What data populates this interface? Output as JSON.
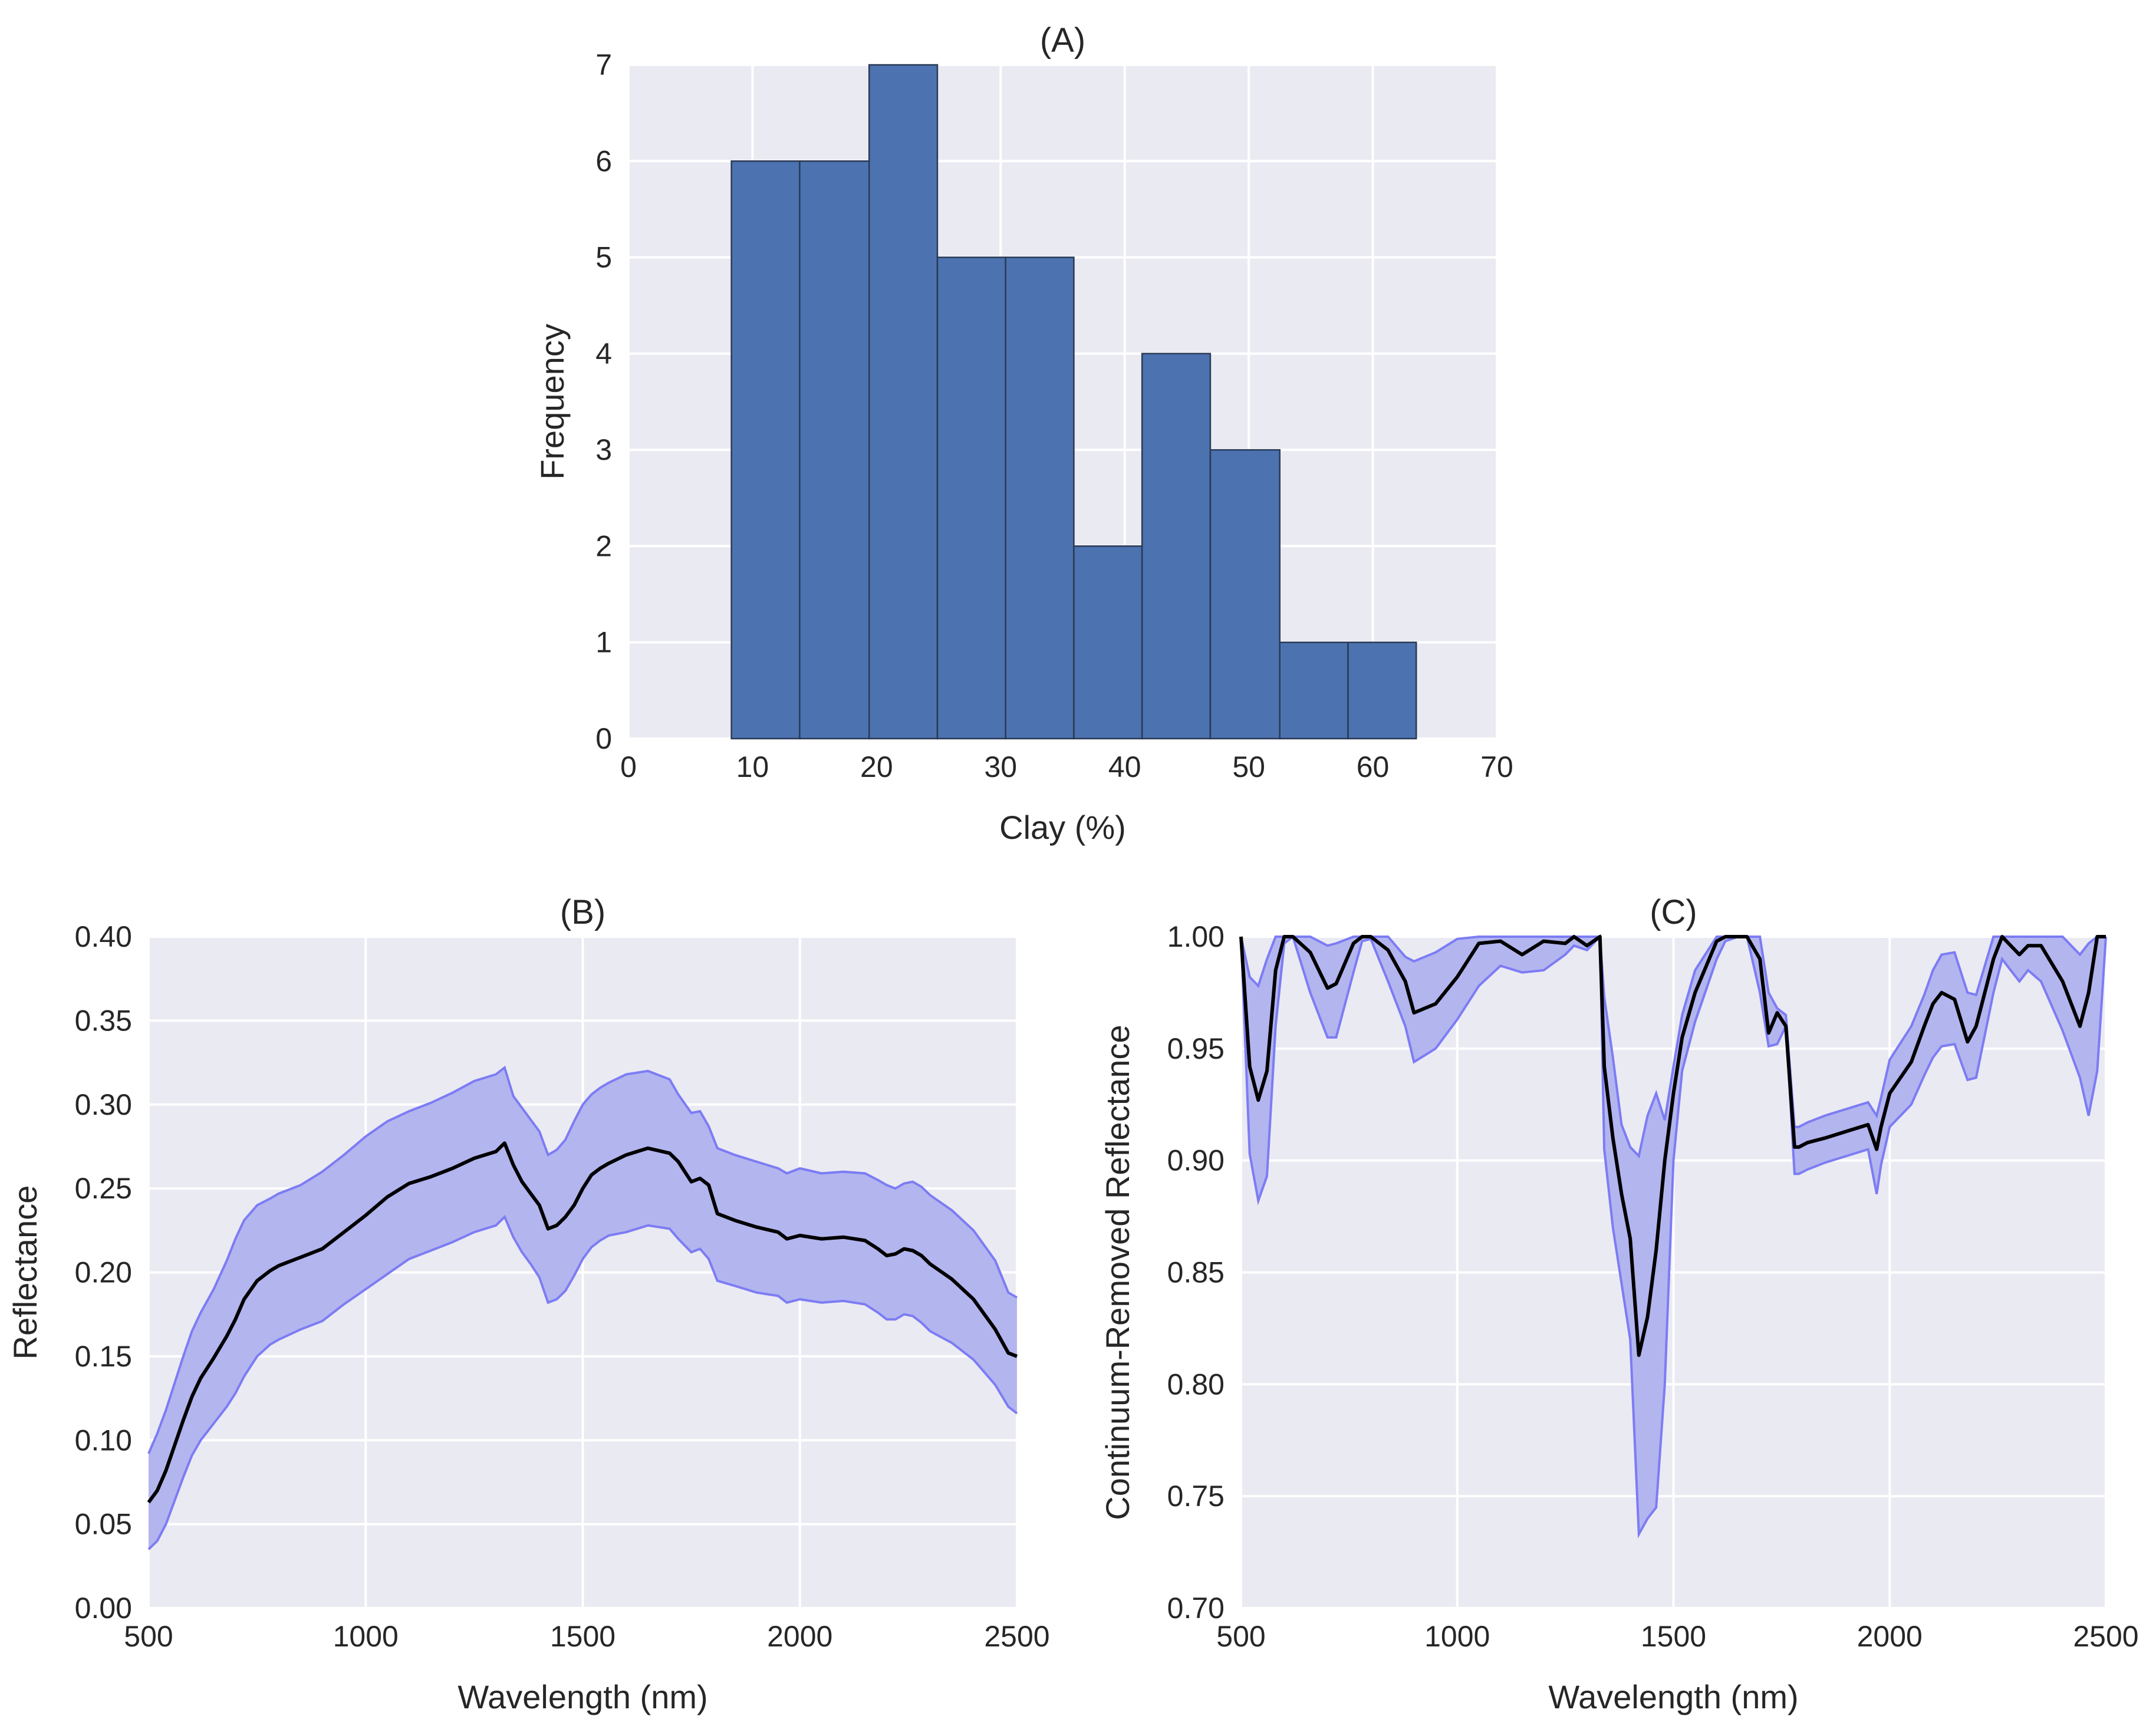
{
  "chart_data": [
    {
      "panel": "A",
      "type": "bar",
      "title": "(A)",
      "xlabel": "Clay (%)",
      "ylabel": "Frequency",
      "xlim": [
        0,
        70
      ],
      "ylim": [
        0,
        7
      ],
      "xticks": [
        0,
        10,
        20,
        30,
        40,
        50,
        60,
        70
      ],
      "yticks": [
        0,
        1,
        2,
        3,
        4,
        5,
        6,
        7
      ],
      "bin_edges": [
        8.3,
        13.8,
        19.4,
        24.9,
        30.4,
        35.9,
        41.4,
        46.9,
        52.5,
        58.0,
        63.5
      ],
      "values": [
        6,
        6,
        7,
        5,
        5,
        2,
        4,
        3,
        1,
        1
      ],
      "bar_color": "#4c72b0",
      "grid": true
    },
    {
      "panel": "B",
      "type": "line",
      "title": "(B)",
      "xlabel": "Wavelength (nm)",
      "ylabel": "Reflectance",
      "xlim": [
        500,
        2500
      ],
      "ylim": [
        0.0,
        0.4
      ],
      "xticks": [
        500,
        1000,
        1500,
        2000,
        2500
      ],
      "yticks": [
        "0.00",
        "0.05",
        "0.10",
        "0.15",
        "0.20",
        "0.25",
        "0.30",
        "0.35",
        "0.40"
      ],
      "x": [
        500,
        520,
        540,
        560,
        580,
        600,
        620,
        650,
        680,
        700,
        720,
        750,
        780,
        800,
        850,
        900,
        950,
        1000,
        1050,
        1100,
        1150,
        1200,
        1250,
        1300,
        1320,
        1340,
        1360,
        1380,
        1400,
        1420,
        1440,
        1460,
        1480,
        1500,
        1520,
        1540,
        1560,
        1600,
        1650,
        1700,
        1720,
        1750,
        1770,
        1790,
        1810,
        1850,
        1900,
        1950,
        1970,
        2000,
        2050,
        2100,
        2150,
        2180,
        2200,
        2220,
        2240,
        2260,
        2280,
        2300,
        2350,
        2400,
        2450,
        2480,
        2500
      ],
      "series": [
        {
          "name": "mean",
          "values": [
            0.063,
            0.07,
            0.082,
            0.097,
            0.112,
            0.126,
            0.137,
            0.149,
            0.162,
            0.172,
            0.184,
            0.195,
            0.201,
            0.204,
            0.209,
            0.214,
            0.224,
            0.234,
            0.245,
            0.253,
            0.257,
            0.262,
            0.268,
            0.272,
            0.277,
            0.264,
            0.254,
            0.247,
            0.24,
            0.226,
            0.228,
            0.233,
            0.24,
            0.25,
            0.258,
            0.262,
            0.265,
            0.27,
            0.274,
            0.271,
            0.266,
            0.254,
            0.256,
            0.252,
            0.235,
            0.231,
            0.227,
            0.224,
            0.22,
            0.222,
            0.22,
            0.221,
            0.219,
            0.214,
            0.21,
            0.211,
            0.214,
            0.213,
            0.21,
            0.205,
            0.196,
            0.184,
            0.166,
            0.152,
            0.15
          ]
        },
        {
          "name": "upper",
          "values": [
            0.092,
            0.104,
            0.118,
            0.134,
            0.15,
            0.165,
            0.176,
            0.19,
            0.207,
            0.22,
            0.231,
            0.24,
            0.244,
            0.247,
            0.252,
            0.26,
            0.27,
            0.281,
            0.29,
            0.296,
            0.301,
            0.307,
            0.314,
            0.318,
            0.322,
            0.305,
            0.298,
            0.291,
            0.284,
            0.27,
            0.273,
            0.279,
            0.29,
            0.3,
            0.306,
            0.31,
            0.313,
            0.318,
            0.32,
            0.315,
            0.306,
            0.295,
            0.296,
            0.287,
            0.274,
            0.27,
            0.266,
            0.262,
            0.259,
            0.262,
            0.259,
            0.26,
            0.259,
            0.255,
            0.252,
            0.25,
            0.253,
            0.254,
            0.251,
            0.246,
            0.237,
            0.225,
            0.207,
            0.188,
            0.185
          ]
        },
        {
          "name": "lower",
          "values": [
            0.035,
            0.04,
            0.05,
            0.064,
            0.078,
            0.091,
            0.1,
            0.11,
            0.12,
            0.128,
            0.138,
            0.15,
            0.157,
            0.16,
            0.166,
            0.171,
            0.181,
            0.19,
            0.199,
            0.208,
            0.213,
            0.218,
            0.224,
            0.228,
            0.233,
            0.221,
            0.212,
            0.205,
            0.197,
            0.182,
            0.184,
            0.189,
            0.198,
            0.208,
            0.215,
            0.219,
            0.222,
            0.224,
            0.228,
            0.226,
            0.22,
            0.212,
            0.214,
            0.208,
            0.195,
            0.192,
            0.188,
            0.186,
            0.182,
            0.184,
            0.182,
            0.183,
            0.181,
            0.176,
            0.172,
            0.172,
            0.175,
            0.174,
            0.17,
            0.165,
            0.158,
            0.148,
            0.133,
            0.12,
            0.116
          ]
        }
      ],
      "line_color": "#000000",
      "band_fill": "#b3b5ef",
      "band_edge": "#7c7cf4",
      "grid": true
    },
    {
      "panel": "C",
      "type": "line",
      "title": "(C)",
      "xlabel": "Wavelength (nm)",
      "ylabel": "Continuum-Removed Reflectance",
      "xlim": [
        500,
        2500
      ],
      "ylim": [
        0.7,
        1.0
      ],
      "xticks": [
        500,
        1000,
        1500,
        2000,
        2500
      ],
      "yticks": [
        "0.70",
        "0.75",
        "0.80",
        "0.85",
        "0.90",
        "0.95",
        "1.00"
      ],
      "x": [
        500,
        520,
        540,
        560,
        580,
        600,
        620,
        660,
        700,
        720,
        760,
        780,
        800,
        840,
        880,
        900,
        950,
        1000,
        1050,
        1100,
        1150,
        1200,
        1250,
        1270,
        1300,
        1330,
        1340,
        1360,
        1380,
        1400,
        1420,
        1440,
        1460,
        1480,
        1500,
        1520,
        1550,
        1600,
        1620,
        1650,
        1670,
        1700,
        1720,
        1740,
        1760,
        1780,
        1790,
        1800,
        1810,
        1850,
        1900,
        1950,
        1970,
        1980,
        2000,
        2050,
        2080,
        2100,
        2120,
        2150,
        2180,
        2200,
        2240,
        2260,
        2280,
        2300,
        2320,
        2350,
        2400,
        2440,
        2460,
        2480,
        2500
      ],
      "series": [
        {
          "name": "mean",
          "values": [
            1.0,
            0.942,
            0.927,
            0.94,
            0.985,
            1.0,
            1.0,
            0.993,
            0.977,
            0.979,
            0.997,
            1.0,
            1.0,
            0.994,
            0.98,
            0.966,
            0.97,
            0.982,
            0.997,
            0.998,
            0.992,
            0.998,
            0.997,
            1.0,
            0.996,
            1.0,
            0.942,
            0.91,
            0.885,
            0.865,
            0.813,
            0.83,
            0.86,
            0.9,
            0.93,
            0.955,
            0.975,
            0.998,
            1.0,
            1.0,
            1.0,
            0.99,
            0.957,
            0.966,
            0.96,
            0.906,
            0.906,
            0.907,
            0.908,
            0.91,
            0.913,
            0.916,
            0.905,
            0.915,
            0.93,
            0.944,
            0.96,
            0.97,
            0.975,
            0.972,
            0.953,
            0.96,
            0.99,
            1.0,
            0.996,
            0.992,
            0.996,
            0.996,
            0.98,
            0.96,
            0.975,
            1.0,
            1.0
          ]
        },
        {
          "name": "upper",
          "values": [
            1.0,
            0.982,
            0.978,
            0.99,
            1.0,
            1.0,
            1.0,
            1.0,
            0.996,
            0.997,
            1.0,
            1.0,
            1.0,
            1.0,
            0.991,
            0.989,
            0.993,
            0.999,
            1.0,
            1.0,
            1.0,
            1.0,
            1.0,
            1.0,
            1.0,
            1.0,
            0.973,
            0.946,
            0.916,
            0.906,
            0.902,
            0.92,
            0.93,
            0.918,
            0.942,
            0.965,
            0.985,
            1.0,
            1.0,
            1.0,
            1.0,
            1.0,
            0.975,
            0.968,
            0.965,
            0.915,
            0.915,
            0.916,
            0.917,
            0.92,
            0.923,
            0.926,
            0.92,
            0.928,
            0.945,
            0.96,
            0.974,
            0.985,
            0.992,
            0.993,
            0.975,
            0.974,
            1.0,
            1.0,
            1.0,
            1.0,
            1.0,
            1.0,
            1.0,
            0.992,
            0.997,
            1.0,
            1.0
          ]
        },
        {
          "name": "lower",
          "values": [
            1.0,
            0.903,
            0.882,
            0.893,
            0.96,
            0.997,
            1.0,
            0.975,
            0.955,
            0.955,
            0.984,
            0.998,
            0.999,
            0.98,
            0.96,
            0.944,
            0.95,
            0.963,
            0.978,
            0.987,
            0.984,
            0.985,
            0.992,
            0.996,
            0.994,
            1.0,
            0.905,
            0.87,
            0.845,
            0.82,
            0.733,
            0.74,
            0.745,
            0.8,
            0.9,
            0.94,
            0.962,
            0.99,
            0.998,
            1.0,
            1.0,
            0.975,
            0.951,
            0.952,
            0.96,
            0.894,
            0.894,
            0.895,
            0.896,
            0.899,
            0.902,
            0.905,
            0.885,
            0.898,
            0.915,
            0.925,
            0.938,
            0.946,
            0.951,
            0.952,
            0.936,
            0.937,
            0.975,
            0.99,
            0.985,
            0.98,
            0.985,
            0.98,
            0.958,
            0.937,
            0.92,
            0.94,
            1.0
          ]
        }
      ],
      "line_color": "#000000",
      "band_fill": "#b3b5ef",
      "band_edge": "#7c7cf4",
      "grid": true
    }
  ]
}
